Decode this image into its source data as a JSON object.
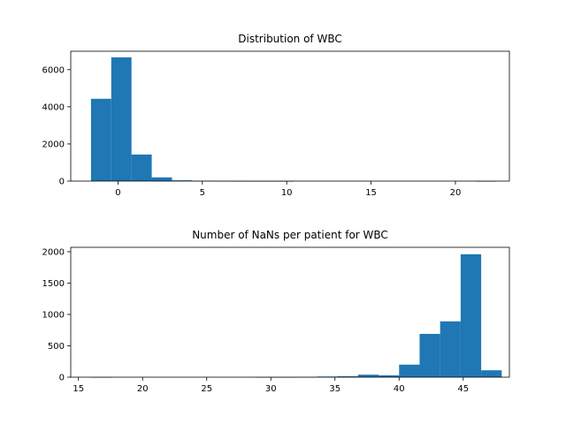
{
  "colors": {
    "bar": "#1f77b4",
    "axis": "#000000",
    "background": "#ffffff"
  },
  "chart_data": [
    {
      "type": "bar",
      "subtype": "histogram",
      "title": "Distribution of WBC",
      "xlabel": "",
      "ylabel": "",
      "xlim": [
        -2.8,
        23.2
      ],
      "ylim": [
        0,
        6990
      ],
      "xticks": [
        0,
        5,
        10,
        15,
        20
      ],
      "yticks": [
        0,
        2000,
        4000,
        6000
      ],
      "grid": false,
      "bins": [
        {
          "x0": -1.6,
          "x1": -0.4,
          "value": 4430
        },
        {
          "x0": -0.4,
          "x1": 0.8,
          "value": 6660
        },
        {
          "x0": 0.8,
          "x1": 2.0,
          "value": 1430
        },
        {
          "x0": 2.0,
          "x1": 3.2,
          "value": 200
        },
        {
          "x0": 3.2,
          "x1": 4.4,
          "value": 40
        },
        {
          "x0": 4.4,
          "x1": 5.6,
          "value": 10
        },
        {
          "x0": 5.6,
          "x1": 6.8,
          "value": 4
        },
        {
          "x0": 6.8,
          "x1": 8.0,
          "value": 2
        },
        {
          "x0": 8.0,
          "x1": 9.2,
          "value": 1
        },
        {
          "x0": 9.2,
          "x1": 10.4,
          "value": 1
        },
        {
          "x0": 10.4,
          "x1": 11.6,
          "value": 0
        },
        {
          "x0": 11.6,
          "x1": 12.8,
          "value": 0
        },
        {
          "x0": 12.8,
          "x1": 14.0,
          "value": 0
        },
        {
          "x0": 14.0,
          "x1": 15.2,
          "value": 0
        },
        {
          "x0": 15.2,
          "x1": 16.4,
          "value": 0
        },
        {
          "x0": 16.4,
          "x1": 17.6,
          "value": 0
        },
        {
          "x0": 17.6,
          "x1": 18.8,
          "value": 0
        },
        {
          "x0": 18.8,
          "x1": 20.0,
          "value": 0
        },
        {
          "x0": 20.0,
          "x1": 21.2,
          "value": 0
        },
        {
          "x0": 21.2,
          "x1": 22.4,
          "value": 1
        }
      ]
    },
    {
      "type": "bar",
      "subtype": "histogram",
      "title": "Number of NaNs per patient for WBC",
      "xlabel": "",
      "ylabel": "",
      "xlim": [
        14.4,
        48.6
      ],
      "ylim": [
        0,
        2070
      ],
      "xticks": [
        15,
        20,
        25,
        30,
        35,
        40,
        45
      ],
      "yticks": [
        0,
        500,
        1000,
        1500,
        2000
      ],
      "grid": false,
      "bins": [
        {
          "x0": 16.0,
          "x1": 17.6,
          "value": 1
        },
        {
          "x0": 17.6,
          "x1": 19.2,
          "value": 0
        },
        {
          "x0": 19.2,
          "x1": 20.8,
          "value": 0
        },
        {
          "x0": 20.8,
          "x1": 22.4,
          "value": 0
        },
        {
          "x0": 22.4,
          "x1": 24.0,
          "value": 0
        },
        {
          "x0": 24.0,
          "x1": 25.6,
          "value": 0
        },
        {
          "x0": 25.6,
          "x1": 27.2,
          "value": 0
        },
        {
          "x0": 27.2,
          "x1": 28.8,
          "value": 0
        },
        {
          "x0": 28.8,
          "x1": 30.4,
          "value": 1
        },
        {
          "x0": 30.4,
          "x1": 32.0,
          "value": 1
        },
        {
          "x0": 32.0,
          "x1": 33.6,
          "value": 3
        },
        {
          "x0": 33.6,
          "x1": 35.2,
          "value": 10
        },
        {
          "x0": 35.2,
          "x1": 36.8,
          "value": 15
        },
        {
          "x0": 36.8,
          "x1": 38.4,
          "value": 40
        },
        {
          "x0": 38.4,
          "x1": 40.0,
          "value": 30
        },
        {
          "x0": 40.0,
          "x1": 41.6,
          "value": 200
        },
        {
          "x0": 41.6,
          "x1": 43.2,
          "value": 690
        },
        {
          "x0": 43.2,
          "x1": 44.8,
          "value": 890
        },
        {
          "x0": 44.8,
          "x1": 46.4,
          "value": 1960
        },
        {
          "x0": 46.4,
          "x1": 48.0,
          "value": 110
        }
      ]
    }
  ]
}
